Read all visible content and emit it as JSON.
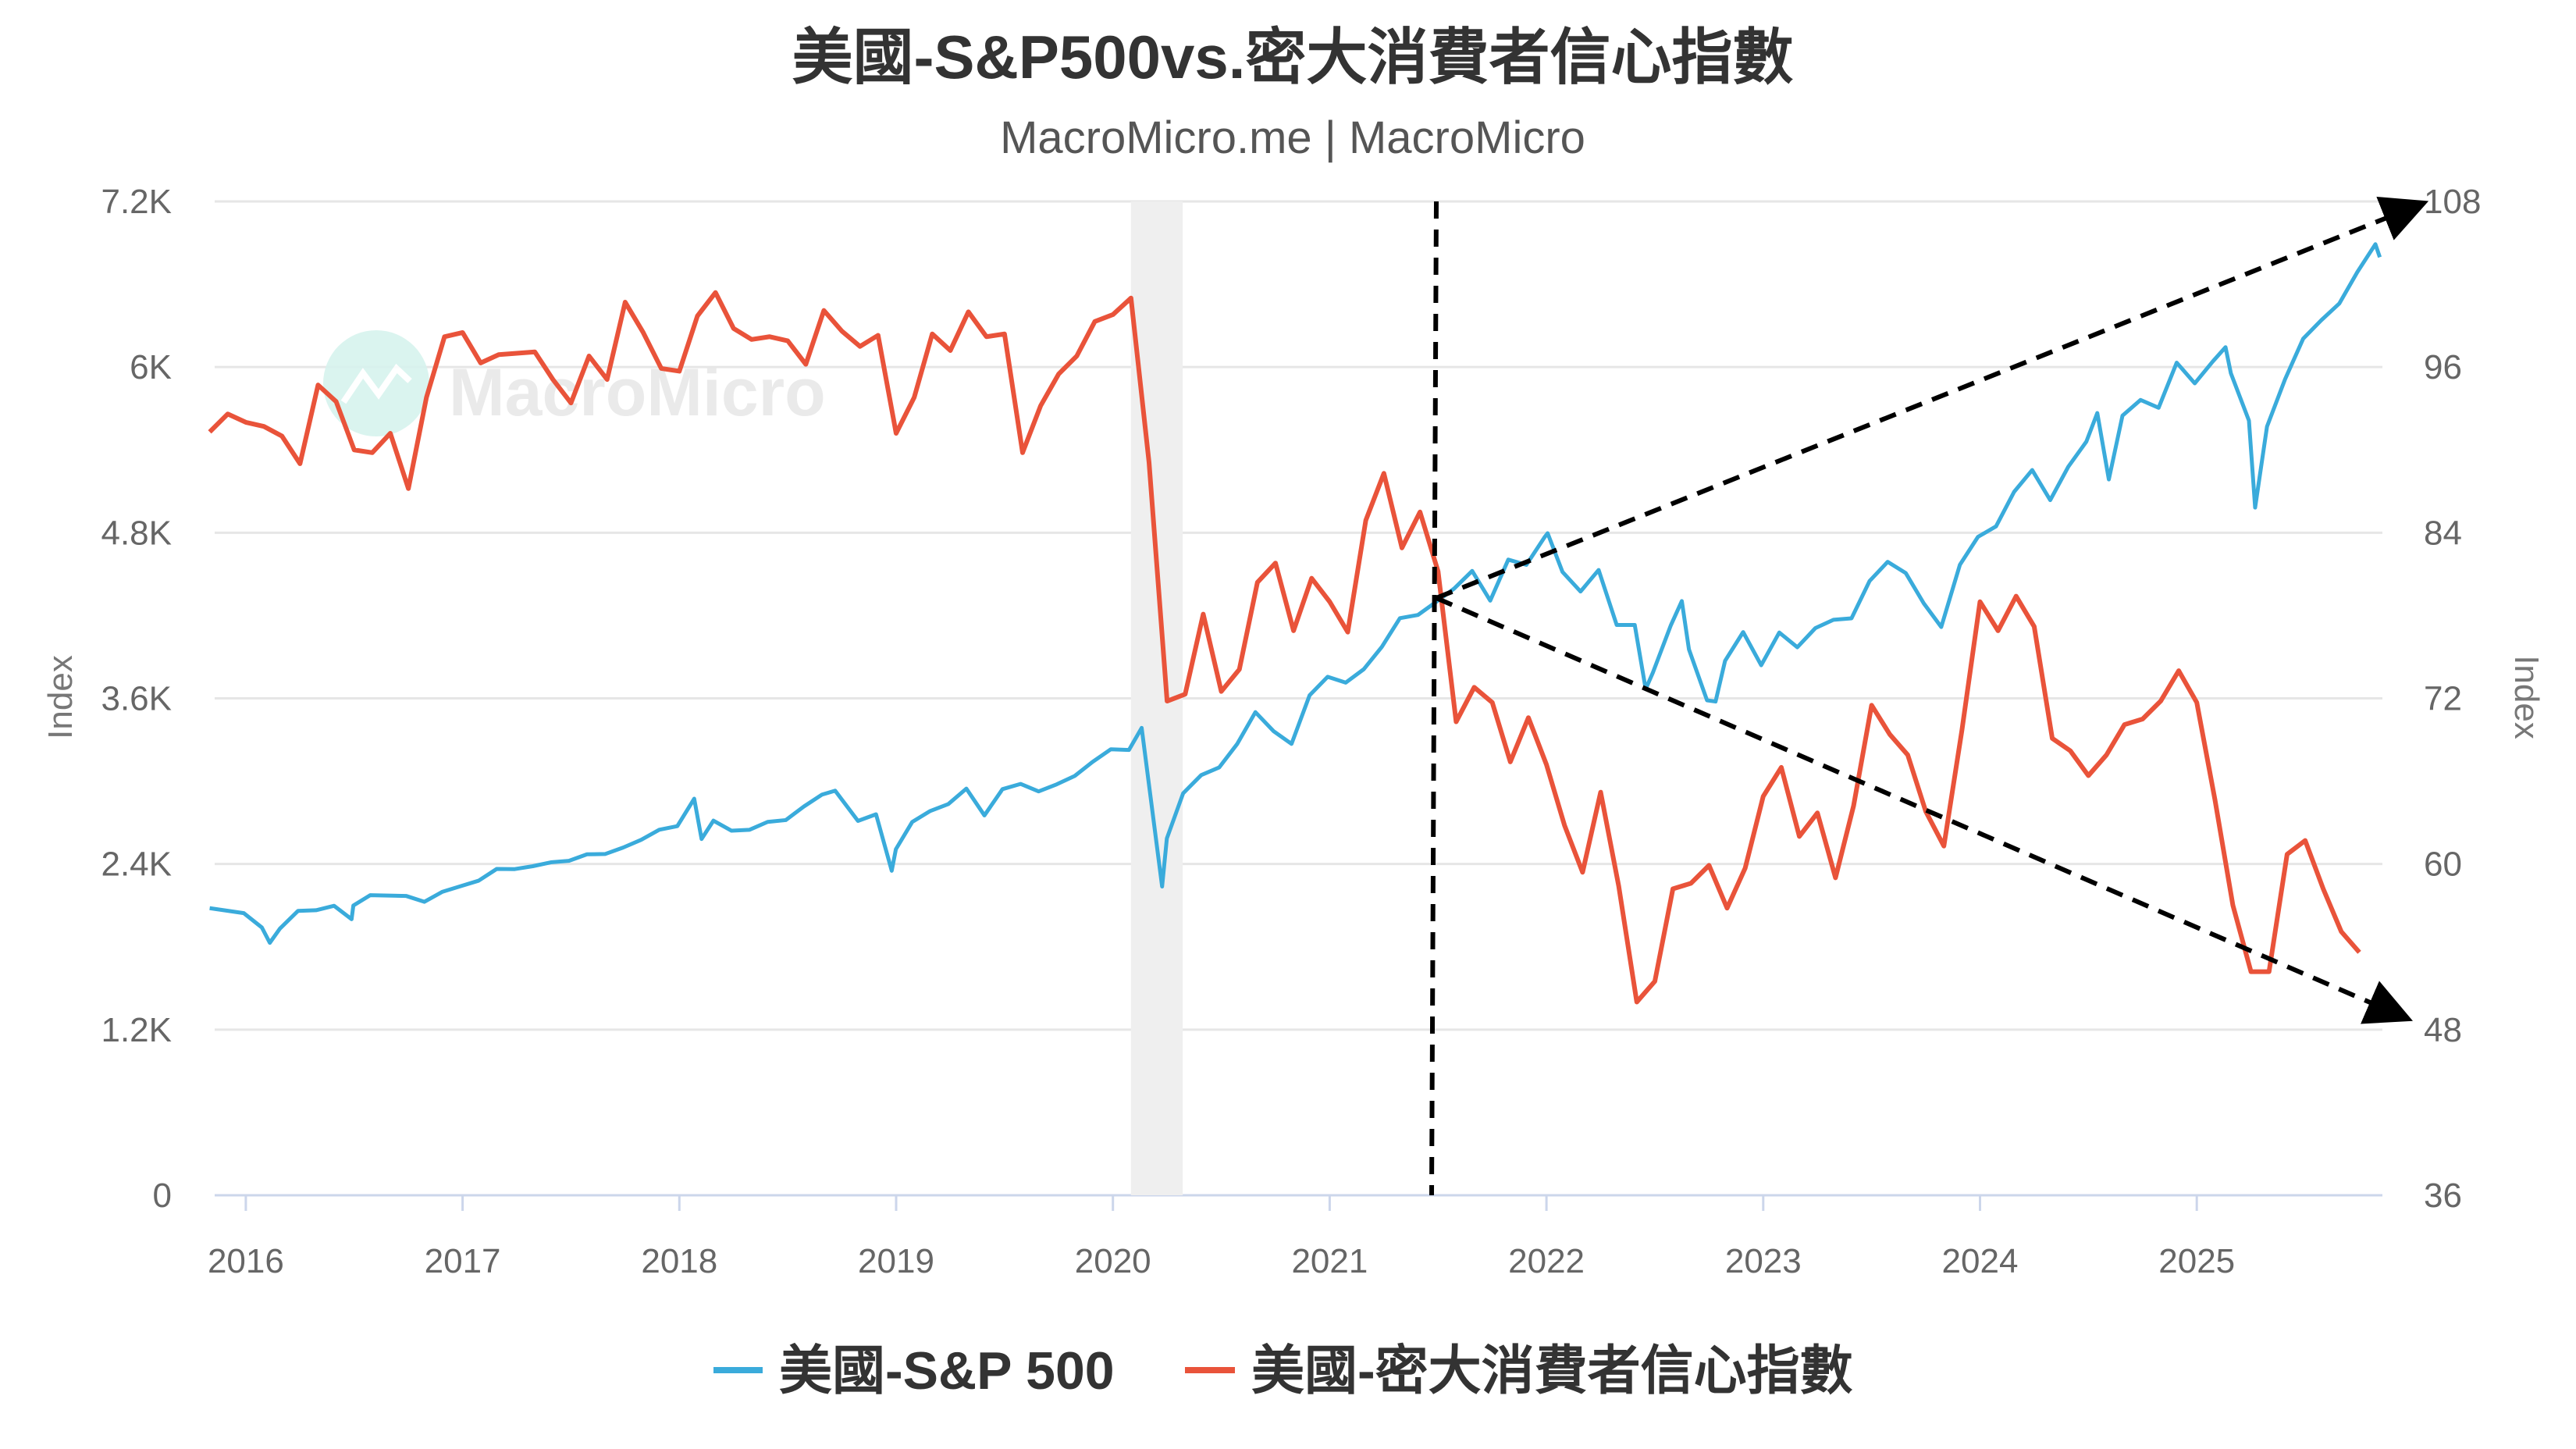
{
  "chart_data": {
    "type": "line",
    "title": "美國-S&P500vs.密大消費者信心指數",
    "subtitle": "MacroMicro.me | MacroMicro",
    "watermark": "MacroMicro",
    "x_ticks": [
      "2016",
      "2017",
      "2018",
      "2019",
      "2020",
      "2021",
      "2022",
      "2023",
      "2024",
      "2025"
    ],
    "x_range": [
      "2015-11",
      "2025-11"
    ],
    "left_axis": {
      "label": "Index",
      "ylim": [
        0,
        7200
      ],
      "ticks": [
        "0",
        "1.2K",
        "2.4K",
        "3.6K",
        "4.8K",
        "6K",
        "7.2K"
      ],
      "tick_values": [
        0,
        1200,
        2400,
        3600,
        4800,
        6000,
        7200
      ]
    },
    "right_axis": {
      "label": "Index",
      "ylim": [
        36,
        108
      ],
      "ticks": [
        "36",
        "48",
        "60",
        "72",
        "84",
        "96",
        "108"
      ],
      "tick_values": [
        36,
        48,
        60,
        72,
        84,
        96,
        108
      ]
    },
    "grid": true,
    "legend_position": "bottom",
    "recession_shading": [
      "2020-02",
      "2020-04"
    ],
    "annotations": {
      "vertical_line_date": "2021-06",
      "arrows": [
        "up-right to 108",
        "down-right to 48"
      ]
    },
    "series": [
      {
        "name": "美國-S&P 500",
        "axis": "left",
        "color": "#3aabdb",
        "points": [
          [
            "2015-11-01",
            2080
          ],
          [
            "2015-12-28",
            2044
          ],
          [
            "2016-01-28",
            1940
          ],
          [
            "2016-02-11",
            1829
          ],
          [
            "2016-02-28",
            1932
          ],
          [
            "2016-03-28",
            2060
          ],
          [
            "2016-04-28",
            2065
          ],
          [
            "2016-05-28",
            2097
          ],
          [
            "2016-06-27",
            2000
          ],
          [
            "2016-06-30",
            2099
          ],
          [
            "2016-07-28",
            2174
          ],
          [
            "2016-08-28",
            2171
          ],
          [
            "2016-09-28",
            2168
          ],
          [
            "2016-10-28",
            2126
          ],
          [
            "2016-11-28",
            2199
          ],
          [
            "2016-12-28",
            2239
          ],
          [
            "2017-01-28",
            2279
          ],
          [
            "2017-02-28",
            2364
          ],
          [
            "2017-03-28",
            2363
          ],
          [
            "2017-04-28",
            2384
          ],
          [
            "2017-05-28",
            2412
          ],
          [
            "2017-06-28",
            2423
          ],
          [
            "2017-07-28",
            2470
          ],
          [
            "2017-08-28",
            2472
          ],
          [
            "2017-09-28",
            2519
          ],
          [
            "2017-10-28",
            2575
          ],
          [
            "2017-11-28",
            2648
          ],
          [
            "2017-12-28",
            2674
          ],
          [
            "2018-01-26",
            2873
          ],
          [
            "2018-02-08",
            2581
          ],
          [
            "2018-02-28",
            2714
          ],
          [
            "2018-03-28",
            2641
          ],
          [
            "2018-04-28",
            2648
          ],
          [
            "2018-05-28",
            2705
          ],
          [
            "2018-06-28",
            2718
          ],
          [
            "2018-07-28",
            2816
          ],
          [
            "2018-08-28",
            2902
          ],
          [
            "2018-09-20",
            2931
          ],
          [
            "2018-10-28",
            2712
          ],
          [
            "2018-11-28",
            2760
          ],
          [
            "2018-12-24",
            2351
          ],
          [
            "2018-12-31",
            2507
          ],
          [
            "2019-01-28",
            2704
          ],
          [
            "2019-02-28",
            2784
          ],
          [
            "2019-03-28",
            2834
          ],
          [
            "2019-04-28",
            2946
          ],
          [
            "2019-05-28",
            2752
          ],
          [
            "2019-06-28",
            2942
          ],
          [
            "2019-07-28",
            2980
          ],
          [
            "2019-08-28",
            2926
          ],
          [
            "2019-09-28",
            2977
          ],
          [
            "2019-10-28",
            3038
          ],
          [
            "2019-11-28",
            3141
          ],
          [
            "2019-12-28",
            3231
          ],
          [
            "2020-01-28",
            3226
          ],
          [
            "2020-02-19",
            3386
          ],
          [
            "2020-03-23",
            2237
          ],
          [
            "2020-03-31",
            2585
          ],
          [
            "2020-04-28",
            2912
          ],
          [
            "2020-05-28",
            3044
          ],
          [
            "2020-06-28",
            3100
          ],
          [
            "2020-07-28",
            3271
          ],
          [
            "2020-08-28",
            3500
          ],
          [
            "2020-09-28",
            3363
          ],
          [
            "2020-10-28",
            3270
          ],
          [
            "2020-11-28",
            3622
          ],
          [
            "2020-12-28",
            3756
          ],
          [
            "2021-01-28",
            3714
          ],
          [
            "2021-02-28",
            3811
          ],
          [
            "2021-03-28",
            3973
          ],
          [
            "2021-04-28",
            4181
          ],
          [
            "2021-05-28",
            4204
          ],
          [
            "2021-06-28",
            4298
          ],
          [
            "2021-07-28",
            4395
          ],
          [
            "2021-08-28",
            4523
          ],
          [
            "2021-09-28",
            4308
          ],
          [
            "2021-10-28",
            4605
          ],
          [
            "2021-11-28",
            4567
          ],
          [
            "2021-12-28",
            4766
          ],
          [
            "2022-01-03",
            4796
          ],
          [
            "2022-01-28",
            4516
          ],
          [
            "2022-02-28",
            4374
          ],
          [
            "2022-03-28",
            4530
          ],
          [
            "2022-04-28",
            4132
          ],
          [
            "2022-05-28",
            4132
          ],
          [
            "2022-06-16",
            3667
          ],
          [
            "2022-06-28",
            3785
          ],
          [
            "2022-07-28",
            4130
          ],
          [
            "2022-08-16",
            4305
          ],
          [
            "2022-08-28",
            3955
          ],
          [
            "2022-09-28",
            3586
          ],
          [
            "2022-10-12",
            3577
          ],
          [
            "2022-10-28",
            3872
          ],
          [
            "2022-11-28",
            4080
          ],
          [
            "2022-12-28",
            3840
          ],
          [
            "2023-01-28",
            4077
          ],
          [
            "2023-02-28",
            3970
          ],
          [
            "2023-03-28",
            4109
          ],
          [
            "2023-04-28",
            4169
          ],
          [
            "2023-05-28",
            4180
          ],
          [
            "2023-06-28",
            4450
          ],
          [
            "2023-07-28",
            4589
          ],
          [
            "2023-08-28",
            4508
          ],
          [
            "2023-09-28",
            4288
          ],
          [
            "2023-10-27",
            4117
          ],
          [
            "2023-11-28",
            4568
          ],
          [
            "2023-12-28",
            4770
          ],
          [
            "2024-01-28",
            4846
          ],
          [
            "2024-02-28",
            5096
          ],
          [
            "2024-03-28",
            5254
          ],
          [
            "2024-04-28",
            5036
          ],
          [
            "2024-05-28",
            5278
          ],
          [
            "2024-06-28",
            5460
          ],
          [
            "2024-07-16",
            5667
          ],
          [
            "2024-08-05",
            5186
          ],
          [
            "2024-08-28",
            5648
          ],
          [
            "2024-09-28",
            5762
          ],
          [
            "2024-10-28",
            5705
          ],
          [
            "2024-11-28",
            6032
          ],
          [
            "2024-12-28",
            5882
          ],
          [
            "2025-01-28",
            6041
          ],
          [
            "2025-02-19",
            6144
          ],
          [
            "2025-02-28",
            5955
          ],
          [
            "2025-03-28",
            5612
          ],
          [
            "2025-04-08",
            4982
          ],
          [
            "2025-04-28",
            5569
          ],
          [
            "2025-05-28",
            5912
          ],
          [
            "2025-06-28",
            6205
          ],
          [
            "2025-07-28",
            6339
          ],
          [
            "2025-08-28",
            6460
          ],
          [
            "2025-09-28",
            6688
          ],
          [
            "2025-10-28",
            6890
          ],
          [
            "2025-11-05",
            6796
          ]
        ]
      },
      {
        "name": "美國-密大消費者信心指數",
        "axis": "right",
        "color": "#e9533a",
        "start": "2015-11",
        "frequency": "monthly",
        "values": [
          91.3,
          92.6,
          92.0,
          91.7,
          91.0,
          89.0,
          94.7,
          93.5,
          90.0,
          89.8,
          91.2,
          87.2,
          93.8,
          98.2,
          98.5,
          96.3,
          96.9,
          97.0,
          97.1,
          95.1,
          93.4,
          96.8,
          95.1,
          100.7,
          98.5,
          95.9,
          95.7,
          99.7,
          101.4,
          98.8,
          98.0,
          98.2,
          97.9,
          96.2,
          100.1,
          98.6,
          97.5,
          98.3,
          91.2,
          93.8,
          98.4,
          97.2,
          100.0,
          98.2,
          98.4,
          89.8,
          93.2,
          95.5,
          96.8,
          99.3,
          99.8,
          101.0,
          89.1,
          71.8,
          72.3,
          78.1,
          72.5,
          74.1,
          80.4,
          81.8,
          76.9,
          80.7,
          79.0,
          76.8,
          84.9,
          88.3,
          82.9,
          85.5,
          81.2,
          70.3,
          72.8,
          71.7,
          67.4,
          70.6,
          67.2,
          62.8,
          59.4,
          65.2,
          58.4,
          50.0,
          51.5,
          58.2,
          58.6,
          59.9,
          56.8,
          59.7,
          64.9,
          67.0,
          62.0,
          63.7,
          59.0,
          64.2,
          71.5,
          69.4,
          67.9,
          63.8,
          61.3,
          69.7,
          79.0,
          76.9,
          79.4,
          77.2,
          69.1,
          68.2,
          66.4,
          67.9,
          70.1,
          70.5,
          71.8,
          74.0,
          71.7,
          64.7,
          57.0,
          52.2,
          52.2,
          60.7,
          61.7,
          58.2,
          55.1,
          53.6
        ]
      }
    ]
  }
}
